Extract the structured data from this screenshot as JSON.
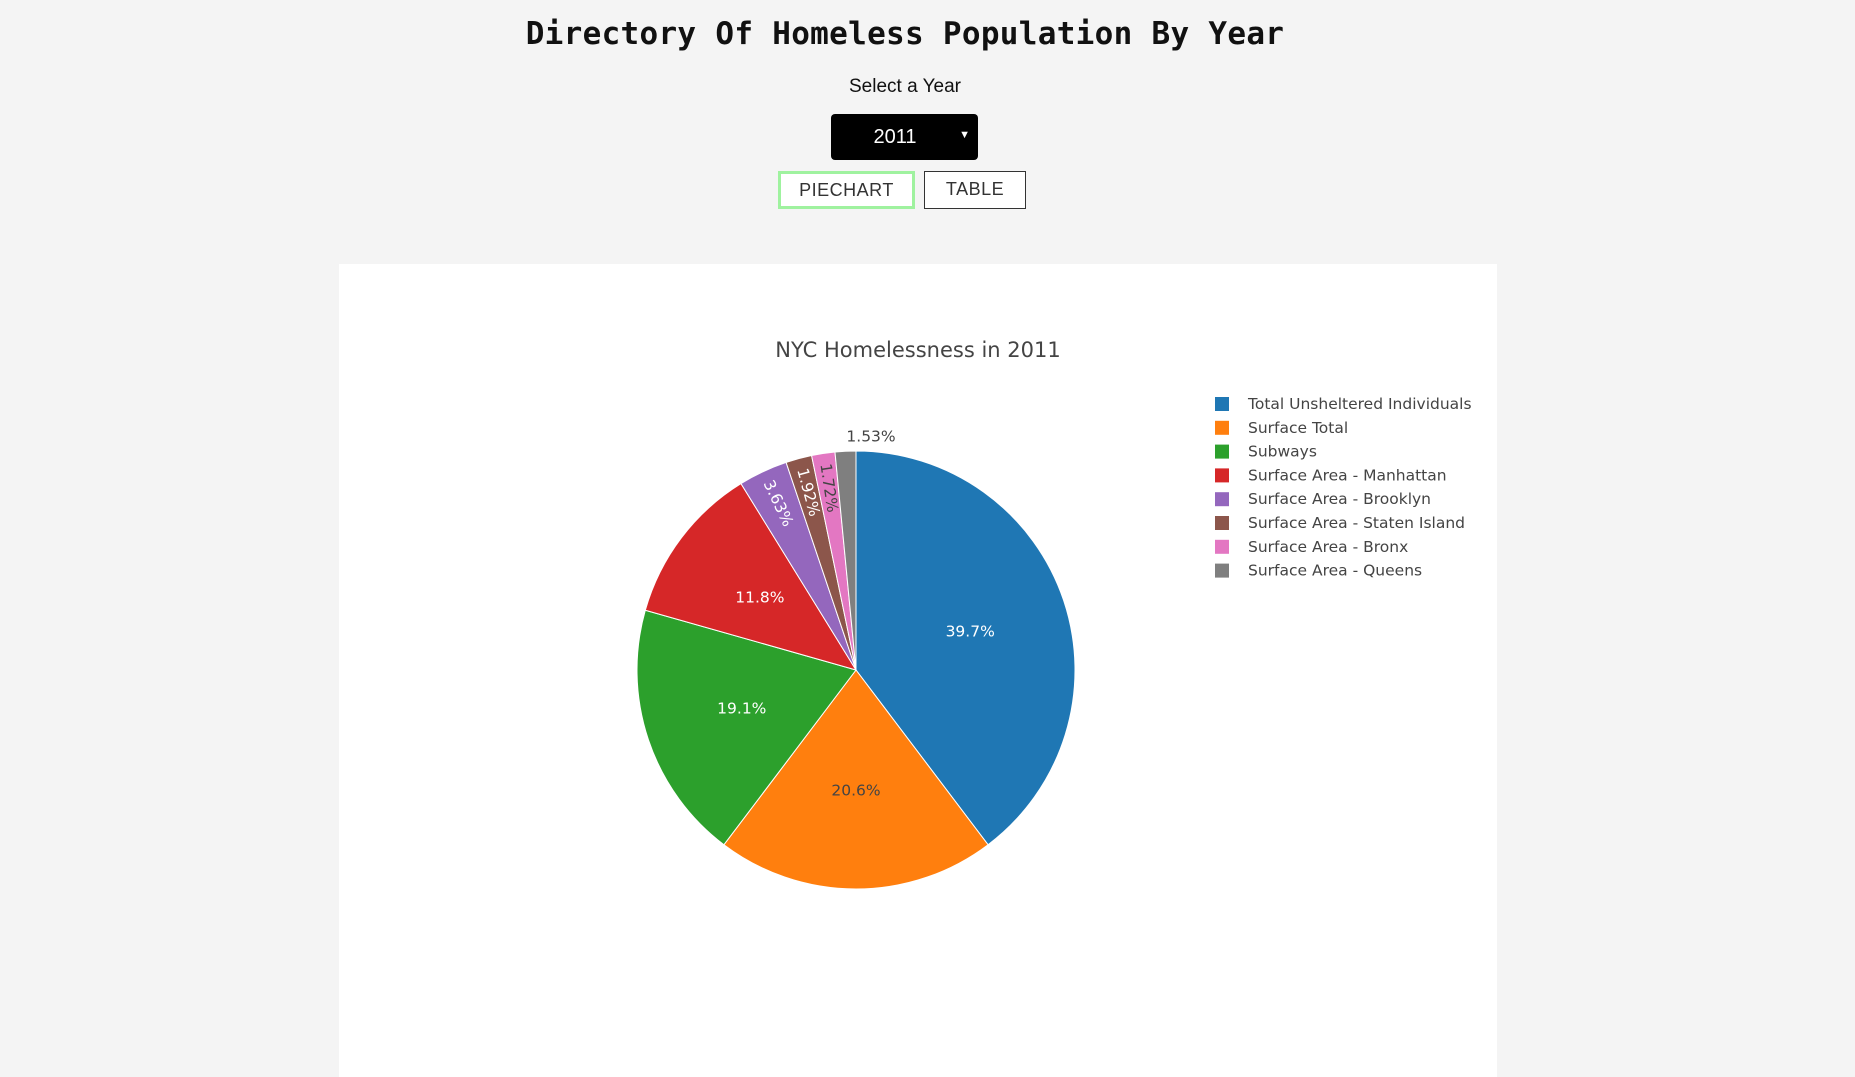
{
  "header": {
    "title": "Directory Of Homeless Population By Year",
    "select_label": "Select a Year"
  },
  "year_select": {
    "selected": "2011",
    "caret_icon": "caret-down-icon"
  },
  "tabs": [
    {
      "label": "PIECHART",
      "active": true
    },
    {
      "label": "TABLE",
      "active": false
    }
  ],
  "colors": {
    "page_bg": "#f4f4f4",
    "active_tab_border": "#9ff29f",
    "select_bg": "#000000"
  },
  "chart_data": {
    "type": "pie",
    "title": "NYC Homelessness in 2011",
    "legend_position": "right",
    "slices": [
      {
        "label": "Total Unsheltered Individuals",
        "percent": 39.7,
        "text": "39.7%",
        "color": "#1f77b4",
        "text_color": "#ffffff"
      },
      {
        "label": "Surface Total",
        "percent": 20.6,
        "text": "20.6%",
        "color": "#ff7f0e",
        "text_color": "#444444"
      },
      {
        "label": "Subways",
        "percent": 19.1,
        "text": "19.1%",
        "color": "#2ca02c",
        "text_color": "#ffffff"
      },
      {
        "label": "Surface Area - Manhattan",
        "percent": 11.8,
        "text": "11.8%",
        "color": "#d62728",
        "text_color": "#ffffff"
      },
      {
        "label": "Surface Area - Brooklyn",
        "percent": 3.63,
        "text": "3.63%",
        "color": "#9467bd",
        "text_color": "#ffffff"
      },
      {
        "label": "Surface Area - Staten Island",
        "percent": 1.92,
        "text": "1.92%",
        "color": "#8c564b",
        "text_color": "#ffffff"
      },
      {
        "label": "Surface Area - Bronx",
        "percent": 1.72,
        "text": "1.72%",
        "color": "#e377c2",
        "text_color": "#444444"
      },
      {
        "label": "Surface Area - Queens",
        "percent": 1.53,
        "text": "1.53%",
        "color": "#7f7f7f",
        "text_color": "#444444"
      }
    ]
  }
}
